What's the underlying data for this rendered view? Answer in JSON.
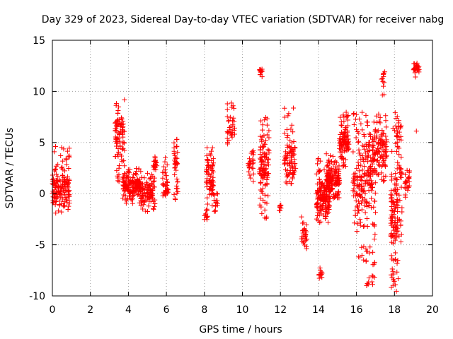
{
  "chart_data": {
    "type": "scatter",
    "title": "Day 329 of 2023, Sidereal Day-to-day VTEC variation (SDTVAR) for receiver nabg",
    "xlabel": "GPS time / hours",
    "ylabel": "SDTVAR / TECUs",
    "xlim": [
      0,
      20
    ],
    "ylim": [
      -10,
      15
    ],
    "xticks": [
      "0",
      "2",
      "4",
      "6",
      "8",
      "10",
      "12",
      "14",
      "16",
      "18",
      "20"
    ],
    "yticks": [
      "-10",
      "-5",
      "0",
      "5",
      "10",
      "15"
    ],
    "grid": true,
    "marker": "+",
    "color": "#ff0000",
    "clusters": [
      {
        "x": [
          0.0,
          0.9
        ],
        "y": [
          -2.0,
          4.7
        ],
        "n": 150,
        "center": 0.5
      },
      {
        "x": [
          3.3,
          3.8
        ],
        "y": [
          1.0,
          9.2
        ],
        "n": 90,
        "center": 6.0
      },
      {
        "x": [
          3.7,
          4.6
        ],
        "y": [
          -1.0,
          2.5
        ],
        "n": 160,
        "center": 0.8
      },
      {
        "x": [
          4.6,
          5.4
        ],
        "y": [
          -1.8,
          2.2
        ],
        "n": 110,
        "center": 0.0
      },
      {
        "x": [
          5.3,
          5.5
        ],
        "y": [
          2.0,
          4.2
        ],
        "n": 20,
        "center": 3.0
      },
      {
        "x": [
          5.8,
          6.1
        ],
        "y": [
          -0.2,
          3.8
        ],
        "n": 40,
        "center": 0.3
      },
      {
        "x": [
          6.4,
          6.6
        ],
        "y": [
          -1.5,
          6.3
        ],
        "n": 40,
        "center": 3.0
      },
      {
        "x": [
          8.0,
          8.2
        ],
        "y": [
          -2.6,
          -1.4
        ],
        "n": 12,
        "center": -2.2
      },
      {
        "x": [
          8.1,
          8.5
        ],
        "y": [
          -1.8,
          4.5
        ],
        "n": 70,
        "center": 1.5
      },
      {
        "x": [
          8.5,
          8.7
        ],
        "y": [
          -1.8,
          0.2
        ],
        "n": 15,
        "center": -1.0
      },
      {
        "x": [
          9.2,
          9.6
        ],
        "y": [
          4.5,
          9.5
        ],
        "n": 35,
        "center": 6.5
      },
      {
        "x": [
          10.3,
          10.6
        ],
        "y": [
          1.0,
          5.5
        ],
        "n": 30,
        "center": 3.0
      },
      {
        "x": [
          10.9,
          11.1
        ],
        "y": [
          11.4,
          12.2
        ],
        "n": 14,
        "center": 12.0
      },
      {
        "x": [
          10.9,
          11.4
        ],
        "y": [
          -3.0,
          7.5
        ],
        "n": 110,
        "center": 3.0
      },
      {
        "x": [
          11.9,
          12.1
        ],
        "y": [
          -1.8,
          -0.8
        ],
        "n": 10,
        "center": -1.2
      },
      {
        "x": [
          12.2,
          12.8
        ],
        "y": [
          1.0,
          8.8
        ],
        "n": 90,
        "center": 3.0
      },
      {
        "x": [
          13.1,
          13.4
        ],
        "y": [
          -5.5,
          -1.8
        ],
        "n": 30,
        "center": -4.5
      },
      {
        "x": [
          14.0,
          14.2
        ],
        "y": [
          -8.3,
          -7.0
        ],
        "n": 12,
        "center": -7.8
      },
      {
        "x": [
          13.9,
          14.6
        ],
        "y": [
          -3.0,
          3.5
        ],
        "n": 160,
        "center": -0.5
      },
      {
        "x": [
          14.4,
          15.1
        ],
        "y": [
          -0.5,
          4.0
        ],
        "n": 160,
        "center": 1.5
      },
      {
        "x": [
          15.1,
          15.6
        ],
        "y": [
          2.5,
          8.0
        ],
        "n": 100,
        "center": 5.0
      },
      {
        "x": [
          15.8,
          16.5
        ],
        "y": [
          -6.5,
          8.2
        ],
        "n": 130,
        "center": 0.5
      },
      {
        "x": [
          16.5,
          17.0
        ],
        "y": [
          -9.0,
          7.0
        ],
        "n": 130,
        "center": 3.0
      },
      {
        "x": [
          17.0,
          17.6
        ],
        "y": [
          1.0,
          8.0
        ],
        "n": 90,
        "center": 4.5
      },
      {
        "x": [
          17.3,
          17.5
        ],
        "y": [
          9.5,
          12.6
        ],
        "n": 12,
        "center": 11.5
      },
      {
        "x": [
          17.8,
          18.2
        ],
        "y": [
          -9.6,
          8.0
        ],
        "n": 110,
        "center": -2.0
      },
      {
        "x": [
          18.1,
          18.4
        ],
        "y": [
          -5.2,
          8.0
        ],
        "n": 60,
        "center": 3.5
      },
      {
        "x": [
          18.5,
          18.8
        ],
        "y": [
          -0.5,
          2.5
        ],
        "n": 25,
        "center": 1.0
      },
      {
        "x": [
          19.0,
          19.3
        ],
        "y": [
          11.2,
          12.8
        ],
        "n": 25,
        "center": 12.2
      },
      {
        "x": [
          19.15,
          19.25
        ],
        "y": [
          5.8,
          6.2
        ],
        "n": 1,
        "center": 6.0
      }
    ]
  }
}
